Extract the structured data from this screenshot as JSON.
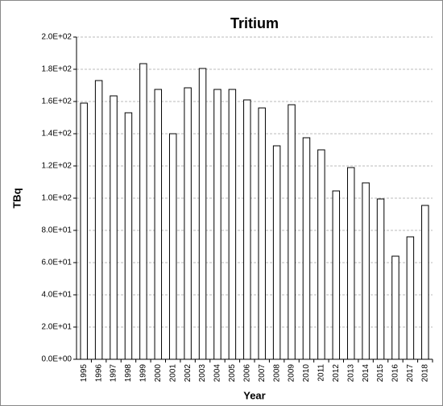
{
  "chart_data": {
    "type": "bar",
    "title": "Tritium",
    "x_label": "Year",
    "y_label": "TBq",
    "categories": [
      "1995",
      "1996",
      "1997",
      "1998",
      "1999",
      "2000",
      "2001",
      "2002",
      "2003",
      "2004",
      "2005",
      "2006",
      "2007",
      "2008",
      "2009",
      "2010",
      "2011",
      "2012",
      "2013",
      "2014",
      "2015",
      "2016",
      "2017",
      "2018"
    ],
    "values": [
      159,
      173,
      163.5,
      153,
      183.5,
      167.5,
      140,
      168.5,
      180.5,
      167.5,
      167.5,
      161,
      156,
      132.5,
      158,
      137.5,
      130,
      104.5,
      119,
      109.5,
      99.5,
      64,
      76,
      95.5
    ],
    "color": "#ffffff",
    "ylim": [
      0,
      200
    ],
    "yticks": [
      {
        "value": 0,
        "label": "0.0E+00"
      },
      {
        "value": 20,
        "label": "2.0E+01"
      },
      {
        "value": 40,
        "label": "4.0E+01"
      },
      {
        "value": 60,
        "label": "6.0E+01"
      },
      {
        "value": 80,
        "label": "8.0E+01"
      },
      {
        "value": 100,
        "label": "1.0E+02"
      },
      {
        "value": 120,
        "label": "1.2E+02"
      },
      {
        "value": 140,
        "label": "1.4E+02"
      },
      {
        "value": 160,
        "label": "1.6E+02"
      },
      {
        "value": 180,
        "label": "1.8E+02"
      },
      {
        "value": 200,
        "label": "2.0E+02"
      }
    ],
    "grid": true
  }
}
